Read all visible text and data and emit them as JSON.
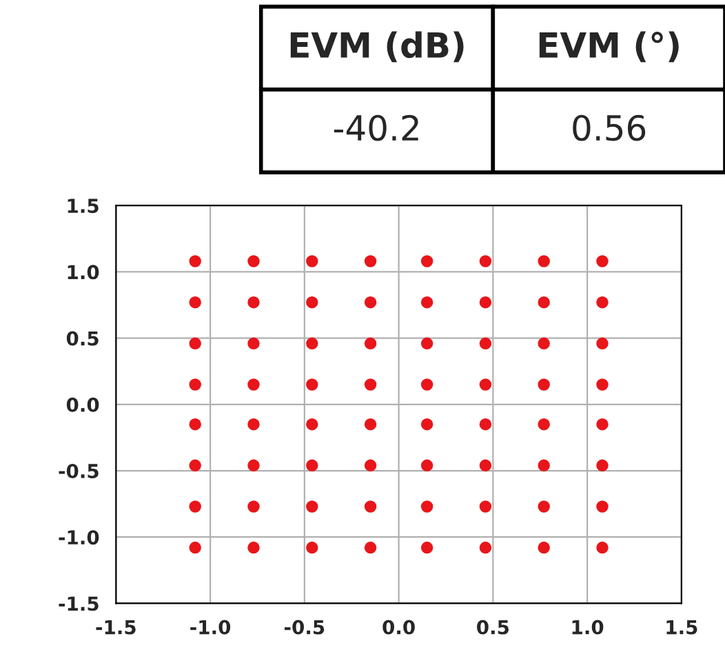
{
  "chart_data": {
    "type": "scatter",
    "annotations": [
      "EVM (dB)",
      "EVM (°)",
      "-40.2",
      "0.56"
    ],
    "x": [
      -1.08,
      -0.77,
      -0.46,
      -0.15,
      0.15,
      0.46,
      0.77,
      1.08,
      -1.08,
      -0.77,
      -0.46,
      -0.15,
      0.15,
      0.46,
      0.77,
      1.08,
      -1.08,
      -0.77,
      -0.46,
      -0.15,
      0.15,
      0.46,
      0.77,
      1.08,
      -1.08,
      -0.77,
      -0.46,
      -0.15,
      0.15,
      0.46,
      0.77,
      1.08,
      -1.08,
      -0.77,
      -0.46,
      -0.15,
      0.15,
      0.46,
      0.77,
      1.08,
      -1.08,
      -0.77,
      -0.46,
      -0.15,
      0.15,
      0.46,
      0.77,
      1.08,
      -1.08,
      -0.77,
      -0.46,
      -0.15,
      0.15,
      0.46,
      0.77,
      1.08,
      -1.08,
      -0.77,
      -0.46,
      -0.15,
      0.15,
      0.46,
      0.77,
      1.08
    ],
    "series": [
      {
        "color": "#e8161b",
        "values": [
          1.08,
          1.08,
          1.08,
          1.08,
          1.08,
          1.08,
          1.08,
          1.08,
          0.77,
          0.77,
          0.77,
          0.77,
          0.77,
          0.77,
          0.77,
          0.77,
          0.46,
          0.46,
          0.46,
          0.46,
          0.46,
          0.46,
          0.46,
          0.46,
          0.15,
          0.15,
          0.15,
          0.15,
          0.15,
          0.15,
          0.15,
          0.15,
          -0.15,
          -0.15,
          -0.15,
          -0.15,
          -0.15,
          -0.15,
          -0.15,
          -0.15,
          -0.46,
          -0.46,
          -0.46,
          -0.46,
          -0.46,
          -0.46,
          -0.46,
          -0.46,
          -0.77,
          -0.77,
          -0.77,
          -0.77,
          -0.77,
          -0.77,
          -0.77,
          -0.77,
          -1.08,
          -1.08,
          -1.08,
          -1.08,
          -1.08,
          -1.08,
          -1.08,
          -1.08
        ]
      }
    ],
    "xlim": [
      -1.5,
      1.5
    ],
    "ylim": [
      -1.5,
      1.5
    ],
    "xticks": [
      -1.5,
      {
        "value": -1,
        "label": "-1.0"
      },
      -0.5,
      {
        "value": 0,
        "label": "0.0"
      },
      0.5,
      {
        "value": 1,
        "label": "1.0"
      },
      1.5
    ],
    "yticks": [
      -1.5,
      {
        "value": -1,
        "label": "-1.0"
      },
      -0.5,
      {
        "value": 0,
        "label": "0.0"
      },
      0.5,
      {
        "value": 1,
        "label": "1.0"
      },
      1.5
    ],
    "grid": true,
    "marker": "circle"
  }
}
